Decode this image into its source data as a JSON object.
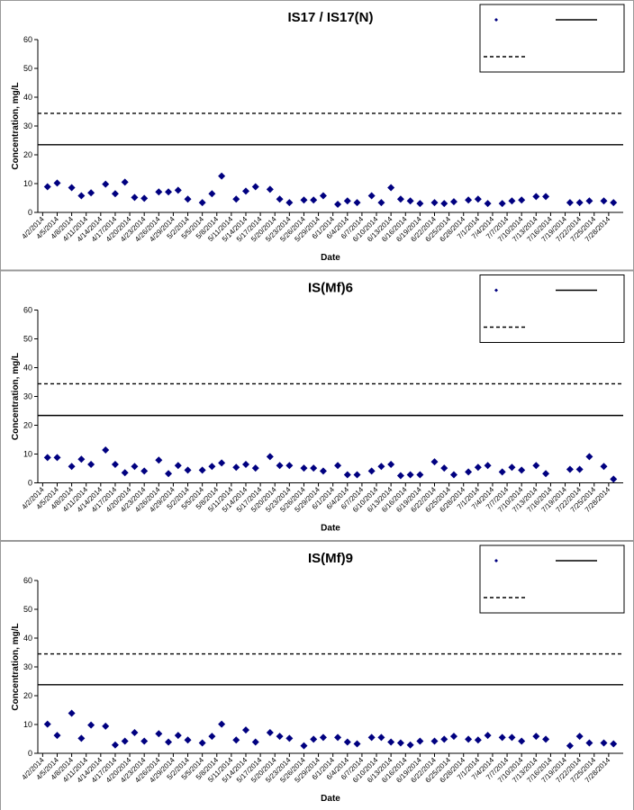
{
  "chart_data": [
    {
      "type": "scatter",
      "title": "IS17 / IS17(N)",
      "x_label": "Date",
      "y_label": "Concentration, mg/L",
      "legend": "upper right",
      "xlim": [
        "2014-04-01",
        "2014-07-31"
      ],
      "ylim": [
        0,
        60
      ],
      "yticks": [
        0,
        10,
        20,
        30,
        40,
        50,
        60
      ],
      "xticks": [
        {
          "value": "2014-04-02",
          "label": "4/2/2014"
        },
        {
          "value": "2014-04-05",
          "label": "4/5/2014"
        },
        {
          "value": "2014-04-08",
          "label": "4/8/2014"
        },
        {
          "value": "2014-04-11",
          "label": "4/11/2014"
        },
        {
          "value": "2014-04-14",
          "label": "4/14/2014"
        },
        {
          "value": "2014-04-17",
          "label": "4/17/2014"
        },
        {
          "value": "2014-04-20",
          "label": "4/20/2014"
        },
        {
          "value": "2014-04-23",
          "label": "4/23/2014"
        },
        {
          "value": "2014-04-26",
          "label": "4/26/2014"
        },
        {
          "value": "2014-04-29",
          "label": "4/29/2014"
        },
        {
          "value": "2014-05-02",
          "label": "5/2/2014"
        },
        {
          "value": "2014-05-05",
          "label": "5/5/2014"
        },
        {
          "value": "2014-05-08",
          "label": "5/8/2014"
        },
        {
          "value": "2014-05-11",
          "label": "5/11/2014"
        },
        {
          "value": "2014-05-14",
          "label": "5/14/2014"
        },
        {
          "value": "2014-05-17",
          "label": "5/17/2014"
        },
        {
          "value": "2014-05-20",
          "label": "5/20/2014"
        },
        {
          "value": "2014-05-23",
          "label": "5/23/2014"
        },
        {
          "value": "2014-05-26",
          "label": "5/26/2014"
        },
        {
          "value": "2014-05-29",
          "label": "5/29/2014"
        },
        {
          "value": "2014-06-01",
          "label": "6/1/2014"
        },
        {
          "value": "2014-06-04",
          "label": "6/4/2014"
        },
        {
          "value": "2014-06-07",
          "label": "6/7/2014"
        },
        {
          "value": "2014-06-10",
          "label": "6/10/2014"
        },
        {
          "value": "2014-06-13",
          "label": "6/13/2014"
        },
        {
          "value": "2014-06-16",
          "label": "6/16/2014"
        },
        {
          "value": "2014-06-19",
          "label": "6/19/2014"
        },
        {
          "value": "2014-06-22",
          "label": "6/22/2014"
        },
        {
          "value": "2014-06-25",
          "label": "6/25/2014"
        },
        {
          "value": "2014-06-28",
          "label": "6/28/2014"
        },
        {
          "value": "2014-07-01",
          "label": "7/1/2014"
        },
        {
          "value": "2014-07-04",
          "label": "7/4/2014"
        },
        {
          "value": "2014-07-07",
          "label": "7/7/2014"
        },
        {
          "value": "2014-07-10",
          "label": "7/10/2014"
        },
        {
          "value": "2014-07-13",
          "label": "7/13/2014"
        },
        {
          "value": "2014-07-16",
          "label": "7/16/2014"
        },
        {
          "value": "2014-07-19",
          "label": "7/19/2014"
        },
        {
          "value": "2014-07-22",
          "label": "7/22/2014"
        },
        {
          "value": "2014-07-25",
          "label": "7/25/2014"
        },
        {
          "value": "2014-07-28",
          "label": "7/28/2014"
        }
      ],
      "x": [
        "2014-04-03",
        "2014-04-05",
        "2014-04-08",
        "2014-04-10",
        "2014-04-12",
        "2014-04-15",
        "2014-04-17",
        "2014-04-19",
        "2014-04-21",
        "2014-04-23",
        "2014-04-26",
        "2014-04-28",
        "2014-04-30",
        "2014-05-02",
        "2014-05-05",
        "2014-05-07",
        "2014-05-09",
        "2014-05-12",
        "2014-05-14",
        "2014-05-16",
        "2014-05-19",
        "2014-05-21",
        "2014-05-23",
        "2014-05-26",
        "2014-05-28",
        "2014-05-30",
        "2014-06-02",
        "2014-06-04",
        "2014-06-06",
        "2014-06-09",
        "2014-06-11",
        "2014-06-13",
        "2014-06-15",
        "2014-06-17",
        "2014-06-19",
        "2014-06-22",
        "2014-06-24",
        "2014-06-26",
        "2014-06-29",
        "2014-07-01",
        "2014-07-03",
        "2014-07-06",
        "2014-07-08",
        "2014-07-10",
        "2014-07-13",
        "2014-07-15",
        "2014-07-20",
        "2014-07-22",
        "2014-07-24",
        "2014-07-27",
        "2014-07-29"
      ],
      "series": [
        {
          "color": "#000080",
          "values": [
            8.9,
            10.2,
            8.6,
            5.8,
            6.8,
            9.8,
            6.5,
            10.5,
            5.2,
            4.9,
            7.1,
            7.1,
            7.7,
            4.6,
            3.4,
            6.5,
            12.6,
            4.6,
            7.4,
            8.9,
            8.0,
            4.6,
            3.4,
            4.3,
            4.3,
            5.8,
            2.8,
            4.0,
            3.4,
            5.8,
            3.4,
            8.6,
            4.6,
            4.0,
            3.1,
            3.4,
            3.1,
            3.7,
            4.3,
            4.6,
            3.1,
            3.1,
            4.0,
            4.3,
            5.5,
            5.5,
            3.4,
            3.4,
            4.0,
            4.0,
            3.4
          ]
        }
      ],
      "reference_lines": [
        {
          "value": 34.4,
          "style": "dashed"
        },
        {
          "value": 23.5,
          "style": "solid"
        }
      ]
    },
    {
      "type": "scatter",
      "title": "IS(Mf)6",
      "x_label": "Date",
      "y_label": "Concentration, mg/L",
      "legend": "upper right",
      "xlim": [
        "2014-04-01",
        "2014-07-31"
      ],
      "ylim": [
        0,
        60
      ],
      "yticks": [
        0,
        10,
        20,
        30,
        40,
        50,
        60
      ],
      "xticks": [
        {
          "value": "2014-04-02",
          "label": "4/2/2014"
        },
        {
          "value": "2014-04-05",
          "label": "4/5/2014"
        },
        {
          "value": "2014-04-08",
          "label": "4/8/2014"
        },
        {
          "value": "2014-04-11",
          "label": "4/11/2014"
        },
        {
          "value": "2014-04-14",
          "label": "4/14/2014"
        },
        {
          "value": "2014-04-17",
          "label": "4/17/2014"
        },
        {
          "value": "2014-04-20",
          "label": "4/20/2014"
        },
        {
          "value": "2014-04-23",
          "label": "4/23/2014"
        },
        {
          "value": "2014-04-26",
          "label": "4/26/2014"
        },
        {
          "value": "2014-04-29",
          "label": "4/29/2014"
        },
        {
          "value": "2014-05-02",
          "label": "5/2/2014"
        },
        {
          "value": "2014-05-05",
          "label": "5/5/2014"
        },
        {
          "value": "2014-05-08",
          "label": "5/8/2014"
        },
        {
          "value": "2014-05-11",
          "label": "5/11/2014"
        },
        {
          "value": "2014-05-14",
          "label": "5/14/2014"
        },
        {
          "value": "2014-05-17",
          "label": "5/17/2014"
        },
        {
          "value": "2014-05-20",
          "label": "5/20/2014"
        },
        {
          "value": "2014-05-23",
          "label": "5/23/2014"
        },
        {
          "value": "2014-05-26",
          "label": "5/26/2014"
        },
        {
          "value": "2014-05-29",
          "label": "5/29/2014"
        },
        {
          "value": "2014-06-01",
          "label": "6/1/2014"
        },
        {
          "value": "2014-06-04",
          "label": "6/4/2014"
        },
        {
          "value": "2014-06-07",
          "label": "6/7/2014"
        },
        {
          "value": "2014-06-10",
          "label": "6/10/2014"
        },
        {
          "value": "2014-06-13",
          "label": "6/13/2014"
        },
        {
          "value": "2014-06-16",
          "label": "6/16/2014"
        },
        {
          "value": "2014-06-19",
          "label": "6/19/2014"
        },
        {
          "value": "2014-06-22",
          "label": "6/22/2014"
        },
        {
          "value": "2014-06-25",
          "label": "6/25/2014"
        },
        {
          "value": "2014-06-28",
          "label": "6/28/2014"
        },
        {
          "value": "2014-07-01",
          "label": "7/1/2014"
        },
        {
          "value": "2014-07-04",
          "label": "7/4/2014"
        },
        {
          "value": "2014-07-07",
          "label": "7/7/2014"
        },
        {
          "value": "2014-07-10",
          "label": "7/10/2014"
        },
        {
          "value": "2014-07-13",
          "label": "7/13/2014"
        },
        {
          "value": "2014-07-16",
          "label": "7/16/2014"
        },
        {
          "value": "2014-07-19",
          "label": "7/19/2014"
        },
        {
          "value": "2014-07-22",
          "label": "7/22/2014"
        },
        {
          "value": "2014-07-25",
          "label": "7/25/2014"
        },
        {
          "value": "2014-07-28",
          "label": "7/28/2014"
        }
      ],
      "x": [
        "2014-04-03",
        "2014-04-05",
        "2014-04-08",
        "2014-04-10",
        "2014-04-12",
        "2014-04-15",
        "2014-04-17",
        "2014-04-19",
        "2014-04-21",
        "2014-04-23",
        "2014-04-26",
        "2014-04-28",
        "2014-04-30",
        "2014-05-02",
        "2014-05-05",
        "2014-05-07",
        "2014-05-09",
        "2014-05-12",
        "2014-05-14",
        "2014-05-16",
        "2014-05-19",
        "2014-05-21",
        "2014-05-23",
        "2014-05-26",
        "2014-05-28",
        "2014-05-30",
        "2014-06-02",
        "2014-06-04",
        "2014-06-06",
        "2014-06-09",
        "2014-06-11",
        "2014-06-13",
        "2014-06-15",
        "2014-06-17",
        "2014-06-19",
        "2014-06-22",
        "2014-06-24",
        "2014-06-26",
        "2014-06-29",
        "2014-07-01",
        "2014-07-03",
        "2014-07-06",
        "2014-07-08",
        "2014-07-10",
        "2014-07-13",
        "2014-07-15",
        "2014-07-20",
        "2014-07-22",
        "2014-07-24",
        "2014-07-27",
        "2014-07-29"
      ],
      "series": [
        {
          "color": "#000080",
          "values": [
            8.8,
            8.8,
            5.7,
            8.2,
            6.4,
            11.4,
            6.4,
            3.5,
            5.7,
            4.1,
            7.9,
            3.2,
            6.0,
            4.4,
            4.4,
            5.7,
            6.9,
            5.4,
            6.4,
            5.1,
            9.1,
            6.0,
            6.0,
            5.1,
            5.1,
            4.1,
            6.0,
            2.8,
            2.8,
            4.1,
            5.7,
            6.4,
            2.5,
            2.8,
            2.8,
            7.3,
            5.1,
            2.8,
            3.8,
            5.4,
            6.0,
            3.8,
            5.4,
            4.4,
            6.0,
            3.2,
            4.7,
            4.7,
            9.1,
            5.7,
            1.3
          ]
        }
      ],
      "reference_lines": [
        {
          "value": 34.4,
          "style": "dashed"
        },
        {
          "value": 23.4,
          "style": "solid"
        }
      ]
    },
    {
      "type": "scatter",
      "title": "IS(Mf)9",
      "x_label": "Date",
      "y_label": "Concentration, mg/L",
      "legend": "upper right",
      "xlim": [
        "2014-04-01",
        "2014-07-31"
      ],
      "ylim": [
        0,
        60
      ],
      "yticks": [
        0,
        10,
        20,
        30,
        40,
        50,
        60
      ],
      "xticks": [
        {
          "value": "2014-04-02",
          "label": "4/2/2014"
        },
        {
          "value": "2014-04-05",
          "label": "4/5/2014"
        },
        {
          "value": "2014-04-08",
          "label": "4/8/2014"
        },
        {
          "value": "2014-04-11",
          "label": "4/11/2014"
        },
        {
          "value": "2014-04-14",
          "label": "4/14/2014"
        },
        {
          "value": "2014-04-17",
          "label": "4/17/2014"
        },
        {
          "value": "2014-04-20",
          "label": "4/20/2014"
        },
        {
          "value": "2014-04-23",
          "label": "4/23/2014"
        },
        {
          "value": "2014-04-26",
          "label": "4/26/2014"
        },
        {
          "value": "2014-04-29",
          "label": "4/29/2014"
        },
        {
          "value": "2014-05-02",
          "label": "5/2/2014"
        },
        {
          "value": "2014-05-05",
          "label": "5/5/2014"
        },
        {
          "value": "2014-05-08",
          "label": "5/8/2014"
        },
        {
          "value": "2014-05-11",
          "label": "5/11/2014"
        },
        {
          "value": "2014-05-14",
          "label": "5/14/2014"
        },
        {
          "value": "2014-05-17",
          "label": "5/17/2014"
        },
        {
          "value": "2014-05-20",
          "label": "5/20/2014"
        },
        {
          "value": "2014-05-23",
          "label": "5/23/2014"
        },
        {
          "value": "2014-05-26",
          "label": "5/26/2014"
        },
        {
          "value": "2014-05-29",
          "label": "5/29/2014"
        },
        {
          "value": "2014-06-01",
          "label": "6/1/2014"
        },
        {
          "value": "2014-06-04",
          "label": "6/4/2014"
        },
        {
          "value": "2014-06-07",
          "label": "6/7/2014"
        },
        {
          "value": "2014-06-10",
          "label": "6/10/2014"
        },
        {
          "value": "2014-06-13",
          "label": "6/13/2014"
        },
        {
          "value": "2014-06-16",
          "label": "6/16/2014"
        },
        {
          "value": "2014-06-19",
          "label": "6/19/2014"
        },
        {
          "value": "2014-06-22",
          "label": "6/22/2014"
        },
        {
          "value": "2014-06-25",
          "label": "6/25/2014"
        },
        {
          "value": "2014-06-28",
          "label": "6/28/2014"
        },
        {
          "value": "2014-07-01",
          "label": "7/1/2014"
        },
        {
          "value": "2014-07-04",
          "label": "7/4/2014"
        },
        {
          "value": "2014-07-07",
          "label": "7/7/2014"
        },
        {
          "value": "2014-07-10",
          "label": "7/10/2014"
        },
        {
          "value": "2014-07-13",
          "label": "7/13/2014"
        },
        {
          "value": "2014-07-16",
          "label": "7/16/2014"
        },
        {
          "value": "2014-07-19",
          "label": "7/19/2014"
        },
        {
          "value": "2014-07-22",
          "label": "7/22/2014"
        },
        {
          "value": "2014-07-25",
          "label": "7/25/2014"
        },
        {
          "value": "2014-07-28",
          "label": "7/28/2014"
        }
      ],
      "x": [
        "2014-04-03",
        "2014-04-05",
        "2014-04-08",
        "2014-04-10",
        "2014-04-12",
        "2014-04-15",
        "2014-04-17",
        "2014-04-19",
        "2014-04-21",
        "2014-04-23",
        "2014-04-26",
        "2014-04-28",
        "2014-04-30",
        "2014-05-02",
        "2014-05-05",
        "2014-05-07",
        "2014-05-09",
        "2014-05-12",
        "2014-05-14",
        "2014-05-16",
        "2014-05-19",
        "2014-05-21",
        "2014-05-23",
        "2014-05-26",
        "2014-05-28",
        "2014-05-30",
        "2014-06-02",
        "2014-06-04",
        "2014-06-06",
        "2014-06-09",
        "2014-06-11",
        "2014-06-13",
        "2014-06-15",
        "2014-06-17",
        "2014-06-19",
        "2014-06-22",
        "2014-06-24",
        "2014-06-26",
        "2014-06-29",
        "2014-07-01",
        "2014-07-03",
        "2014-07-06",
        "2014-07-08",
        "2014-07-10",
        "2014-07-13",
        "2014-07-15",
        "2014-07-20",
        "2014-07-22",
        "2014-07-24",
        "2014-07-27",
        "2014-07-29"
      ],
      "series": [
        {
          "color": "#000080",
          "values": [
            10.1,
            6.2,
            13.9,
            5.2,
            9.8,
            9.4,
            2.9,
            4.2,
            7.2,
            4.2,
            6.8,
            3.9,
            6.2,
            4.6,
            3.6,
            5.9,
            10.1,
            4.6,
            8.1,
            3.9,
            7.2,
            5.9,
            5.2,
            2.6,
            4.9,
            5.5,
            5.5,
            3.9,
            3.3,
            5.5,
            5.5,
            3.9,
            3.6,
            2.9,
            4.2,
            4.2,
            4.9,
            5.9,
            4.9,
            4.6,
            6.2,
            5.5,
            5.5,
            4.2,
            5.9,
            4.9,
            2.6,
            5.9,
            3.6,
            3.6,
            3.3
          ]
        }
      ],
      "reference_lines": [
        {
          "value": 34.5,
          "style": "dashed"
        },
        {
          "value": 23.8,
          "style": "solid"
        }
      ]
    }
  ]
}
